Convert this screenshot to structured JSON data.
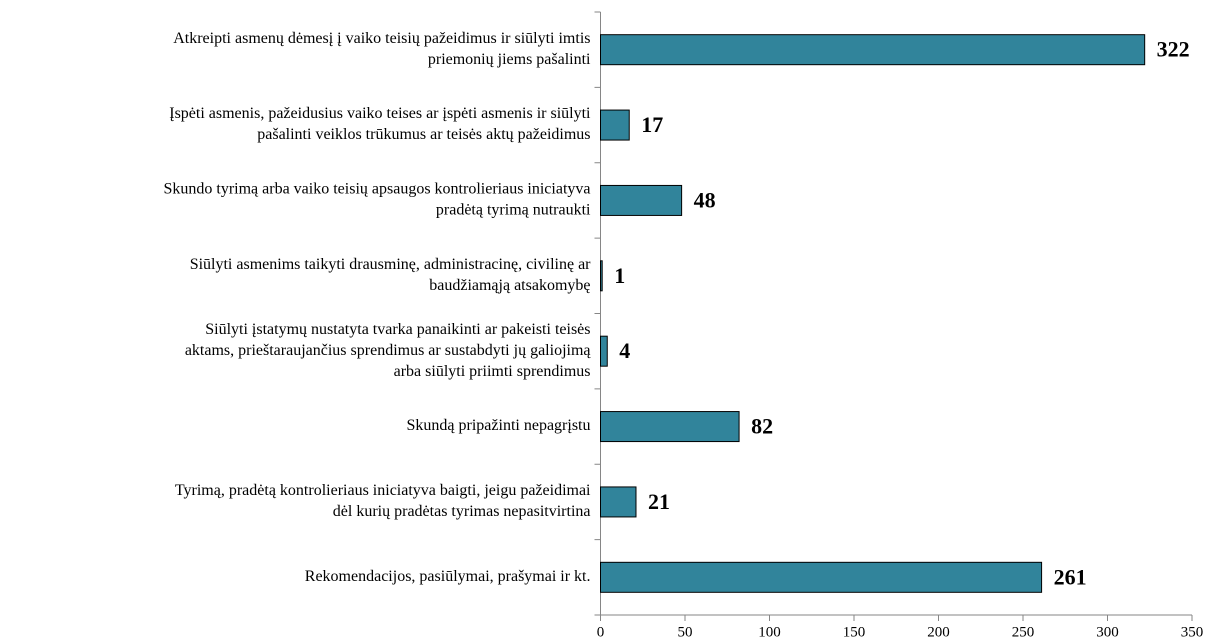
{
  "chart_data": {
    "type": "bar",
    "orientation": "horizontal",
    "categories": [
      [
        "Atkreipti asmenų dėmesį į vaiko teisių pažeidimus ir siūlyti imtis",
        "priemonių jiems pašalinti"
      ],
      [
        "Įspėti asmenis, pažeidusius vaiko teises ar įspėti asmenis ir siūlyti",
        "pašalinti veiklos trūkumus ar teisės aktų pažeidimus"
      ],
      [
        "Skundo tyrimą arba vaiko teisių apsaugos kontrolieriaus iniciatyva",
        "pradėtą tyrimą nutraukti"
      ],
      [
        "Siūlyti asmenims taikyti drausminę, administracinę, civilinę ar",
        "baudžiamąją atsakomybę"
      ],
      [
        "Siūlyti įstatymų nustatyta tvarka panaikinti ar pakeisti teisės",
        "aktams, prieštaraujančius sprendimus ar sustabdyti jų galiojimą",
        "arba siūlyti priimti sprendimus"
      ],
      [
        "Skundą pripažinti nepagrįstu"
      ],
      [
        "Tyrimą, pradėtą kontrolieriaus iniciatyva baigti, jeigu pažeidimai",
        "dėl kurių pradėtas tyrimas nepasitvirtina"
      ],
      [
        "Rekomendacijos, pasiūlymai, prašymai ir kt."
      ]
    ],
    "values": [
      322,
      17,
      48,
      1,
      4,
      82,
      21,
      261
    ],
    "color": "#31849b",
    "xlim": [
      0,
      350
    ],
    "xticks": [
      0,
      50,
      100,
      150,
      200,
      250,
      300,
      350
    ]
  }
}
